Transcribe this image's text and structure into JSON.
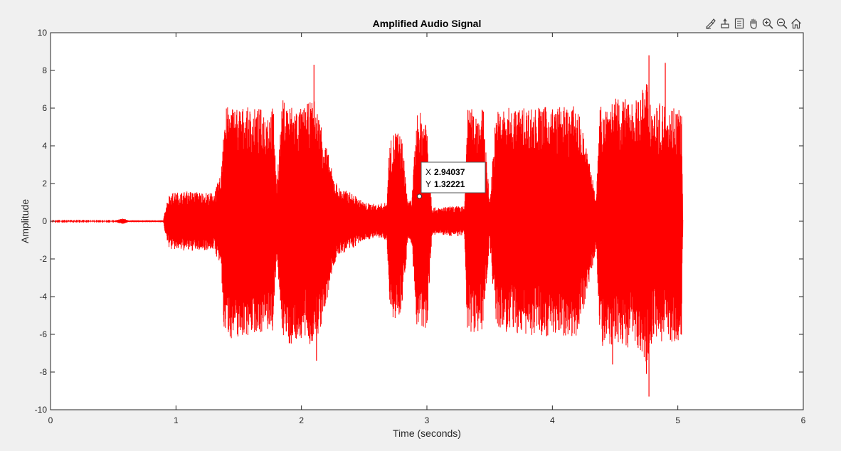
{
  "toolbar": {
    "icons": [
      "brush-icon",
      "datatip-icon",
      "restore-view-icon",
      "pan-icon",
      "zoom-in-icon",
      "zoom-out-icon",
      "home-icon"
    ]
  },
  "chart_data": {
    "type": "line",
    "title": "Amplified Audio Signal",
    "xlabel": "Time (seconds)",
    "ylabel": "Amplitude",
    "xlim": [
      0,
      6
    ],
    "ylim": [
      -10,
      10
    ],
    "xticks": [
      0,
      1,
      2,
      3,
      4,
      5,
      6
    ],
    "yticks": [
      -10,
      -8,
      -6,
      -4,
      -2,
      0,
      2,
      4,
      6,
      8,
      10
    ],
    "grid": false,
    "line_color": "#ff0000",
    "series": [
      {
        "envelope": {
          "t": [
            0,
            0.5,
            0.58,
            0.62,
            0.9,
            0.92,
            0.95,
            1.1,
            1.3,
            1.36,
            1.38,
            1.45,
            1.6,
            1.7,
            1.78,
            1.8,
            1.85,
            1.9,
            2.0,
            2.1,
            2.15,
            2.2,
            2.25,
            2.3,
            2.4,
            2.5,
            2.6,
            2.68,
            2.7,
            2.75,
            2.8,
            2.85,
            2.88,
            2.92,
            3.0,
            3.04,
            3.08,
            3.2,
            3.3,
            3.32,
            3.36,
            3.45,
            3.5,
            3.55,
            3.6,
            3.8,
            4.0,
            4.2,
            4.35,
            4.38,
            4.4,
            4.5,
            4.7,
            4.75,
            4.8,
            4.9,
            5.0,
            5.03,
            5.04
          ],
          "upper": [
            0.02,
            0.02,
            0.15,
            0.05,
            0.05,
            0.9,
            1.5,
            1.6,
            1.5,
            2.5,
            6.0,
            6.2,
            6.0,
            6.0,
            6.1,
            2.0,
            6.5,
            6.3,
            6.0,
            6.5,
            5.5,
            4.0,
            2.5,
            1.8,
            1.5,
            1.0,
            0.9,
            1.0,
            4.0,
            5.0,
            4.5,
            1.0,
            1.2,
            5.8,
            5.7,
            0.8,
            0.7,
            0.8,
            0.8,
            6.0,
            6.0,
            6.0,
            1.0,
            5.9,
            6.0,
            6.1,
            6.1,
            6.1,
            1.5,
            6.0,
            6.4,
            6.5,
            6.5,
            7.8,
            6.2,
            6.3,
            6.2,
            6.1,
            0.1
          ],
          "lower": [
            -0.02,
            -0.02,
            -0.15,
            -0.05,
            -0.05,
            -0.9,
            -1.5,
            -1.6,
            -1.5,
            -2.5,
            -5.8,
            -6.3,
            -6.0,
            -5.9,
            -5.9,
            -2.0,
            -6.0,
            -6.6,
            -6.3,
            -6.7,
            -5.8,
            -4.5,
            -2.5,
            -1.8,
            -1.5,
            -1.0,
            -0.9,
            -1.0,
            -4.5,
            -5.5,
            -4.6,
            -1.0,
            -1.2,
            -5.8,
            -5.8,
            -0.8,
            -0.7,
            -0.8,
            -0.8,
            -5.8,
            -5.9,
            -5.8,
            -1.0,
            -5.8,
            -5.9,
            -6.1,
            -6.1,
            -6.1,
            -1.5,
            -6.1,
            -6.8,
            -6.6,
            -6.8,
            -7.5,
            -6.3,
            -6.4,
            -6.5,
            -6.4,
            -0.1
          ]
        },
        "spikes": [
          {
            "t": 2.1,
            "y": 8.3
          },
          {
            "t": 4.77,
            "y": 8.8
          },
          {
            "t": 4.9,
            "y": 8.4
          },
          {
            "t": 4.77,
            "y": -9.3
          },
          {
            "t": 4.75,
            "y": -8.1
          },
          {
            "t": 2.12,
            "y": -7.4
          },
          {
            "t": 4.48,
            "y": -7.6
          }
        ]
      }
    ],
    "datatip": {
      "x": 2.94037,
      "y": 1.32221,
      "x_label": "X",
      "y_label": "Y",
      "x_text": "2.94037",
      "y_text": "1.32221"
    }
  }
}
